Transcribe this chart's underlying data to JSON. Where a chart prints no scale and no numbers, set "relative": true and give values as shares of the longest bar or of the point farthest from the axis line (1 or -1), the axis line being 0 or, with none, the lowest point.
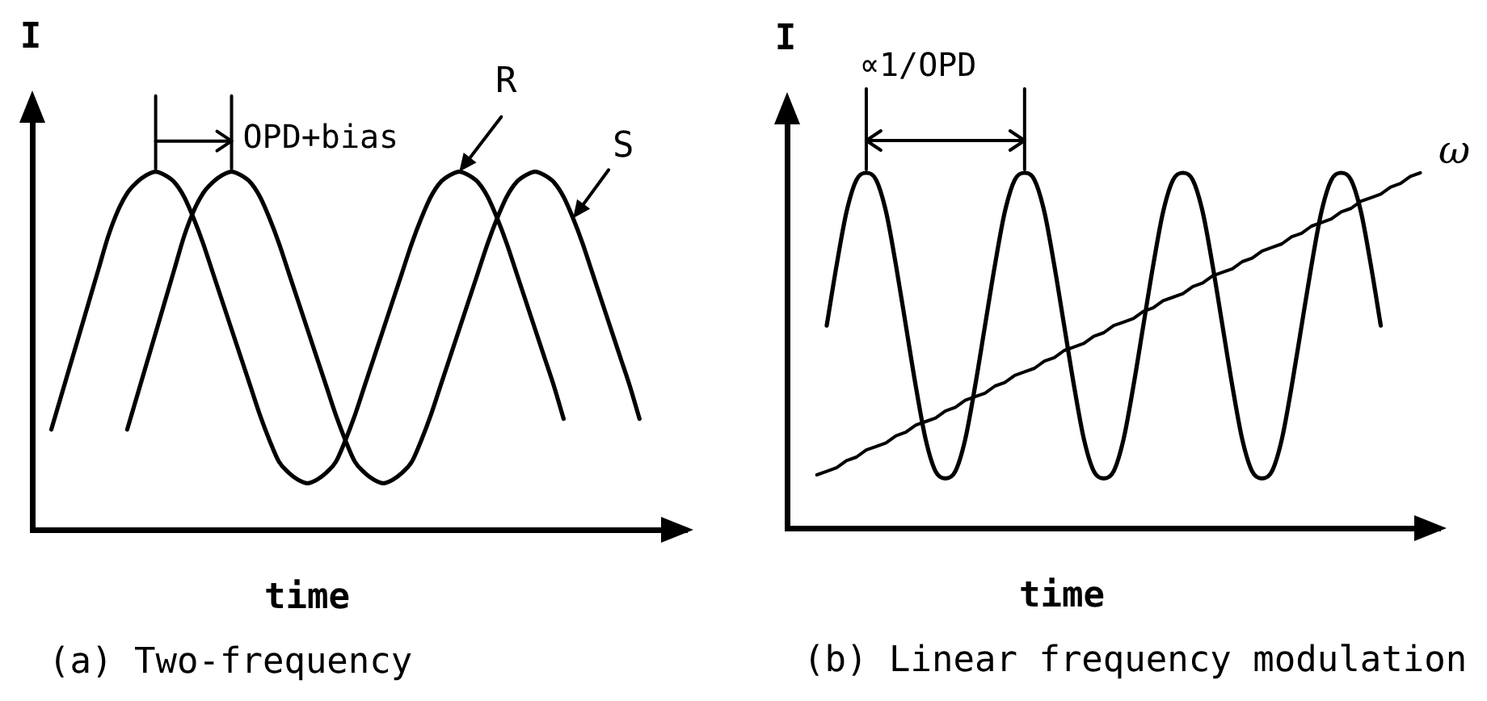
{
  "chart_data": [
    {
      "type": "line",
      "title": "(a) Two-frequency",
      "xlabel": "time",
      "ylabel": "I",
      "relative": true,
      "tick_labels": false,
      "annotations": [
        "OPD+bias"
      ],
      "categories": [
        null,
        null,
        null,
        null,
        null,
        null,
        null,
        null,
        null,
        null,
        null,
        null,
        null,
        null,
        null,
        null,
        null,
        null,
        null,
        null,
        null,
        null,
        null,
        null,
        null,
        null,
        null,
        null,
        null,
        null,
        null,
        null,
        null,
        null,
        null,
        null,
        null,
        null,
        null,
        null,
        null,
        null,
        null,
        null,
        null,
        null,
        null,
        null,
        null,
        null,
        null,
        null,
        null,
        null,
        null,
        null,
        null,
        null,
        null,
        null,
        null,
        null,
        null,
        null,
        null,
        null,
        null,
        null,
        null,
        null
      ],
      "series": [
        {
          "name": "R",
          "color": "#000000",
          "values": [
            null,
            null,
            0.28,
            0.37,
            0.46,
            0.55,
            0.64,
            0.73,
            0.82,
            0.89,
            0.94,
            0.97,
            0.99,
            1,
            0.99,
            0.97,
            0.93,
            0.87,
            0.8,
            0.72,
            0.64,
            0.56,
            0.48,
            0.4,
            0.32,
            0.25,
            0.19,
            0.16,
            0.14,
            0.13,
            0.14,
            0.16,
            0.19,
            0.25,
            0.32,
            0.4,
            0.48,
            0.56,
            0.64,
            0.72,
            0.8,
            0.87,
            0.93,
            0.97,
            0.99,
            1,
            0.99,
            0.97,
            0.93,
            0.87,
            0.8,
            0.72,
            0.64,
            0.56,
            0.48,
            0.4,
            0.31,
            null,
            null,
            null,
            null,
            null,
            null,
            null,
            null,
            null,
            null,
            null,
            null,
            null
          ]
        },
        {
          "name": "S",
          "color": "#000000",
          "values": [
            null,
            null,
            null,
            null,
            null,
            null,
            null,
            null,
            null,
            null,
            0.28,
            0.37,
            0.46,
            0.55,
            0.64,
            0.73,
            0.82,
            0.89,
            0.94,
            0.97,
            0.99,
            1,
            0.99,
            0.97,
            0.93,
            0.87,
            0.8,
            0.72,
            0.64,
            0.56,
            0.48,
            0.4,
            0.32,
            0.25,
            0.19,
            0.16,
            0.14,
            0.13,
            0.14,
            0.16,
            0.19,
            0.25,
            0.32,
            0.4,
            0.48,
            0.56,
            0.64,
            0.72,
            0.8,
            0.87,
            0.93,
            0.97,
            0.99,
            1,
            0.99,
            0.97,
            0.93,
            0.87,
            0.8,
            0.72,
            0.64,
            0.56,
            0.48,
            0.4,
            0.31,
            null,
            null,
            null,
            null,
            null
          ]
        }
      ]
    },
    {
      "type": "line",
      "title": "(b) Linear frequency modulation",
      "xlabel": "time",
      "ylabel": "I",
      "relative": true,
      "tick_labels": false,
      "annotations": [
        "∝1/OPD"
      ],
      "categories": [
        null,
        null,
        null,
        null,
        null,
        null,
        null,
        null,
        null,
        null,
        null,
        null,
        null,
        null,
        null,
        null,
        null,
        null,
        null,
        null,
        null,
        null,
        null,
        null,
        null,
        null,
        null,
        null,
        null,
        null,
        null,
        null,
        null,
        null,
        null,
        null,
        null,
        null,
        null,
        null,
        null,
        null,
        null,
        null,
        null,
        null,
        null,
        null,
        null,
        null,
        null,
        null,
        null,
        null,
        null,
        null,
        null,
        null,
        null,
        null,
        null,
        null,
        null,
        null,
        null,
        null,
        null
      ],
      "series": [
        {
          "color": "#000000",
          "values": [
            null,
            null,
            null,
            null,
            0.57,
            0.74,
            0.89,
            0.98,
            1,
            0.98,
            0.89,
            0.74,
            0.57,
            0.4,
            0.25,
            0.16,
            0.14,
            0.16,
            0.25,
            0.4,
            0.57,
            0.74,
            0.89,
            0.98,
            1,
            0.98,
            0.89,
            0.74,
            0.57,
            0.4,
            0.25,
            0.16,
            0.14,
            0.16,
            0.25,
            0.4,
            0.57,
            0.74,
            0.89,
            0.98,
            1,
            0.98,
            0.89,
            0.74,
            0.57,
            0.4,
            0.25,
            0.16,
            0.14,
            0.16,
            0.25,
            0.4,
            0.57,
            0.74,
            0.89,
            0.98,
            1,
            0.98,
            0.89,
            0.74,
            0.57,
            null,
            null,
            null,
            null,
            null,
            null
          ]
        },
        {
          "name": "ω",
          "color": "#000000",
          "values": [
            null,
            null,
            null,
            0.15,
            0.16,
            0.17,
            0.19,
            0.2,
            0.22,
            0.23,
            0.24,
            0.26,
            0.27,
            0.29,
            0.3,
            0.31,
            0.33,
            0.34,
            0.36,
            0.37,
            0.38,
            0.4,
            0.41,
            0.43,
            0.44,
            0.45,
            0.47,
            0.48,
            0.5,
            0.51,
            0.52,
            0.54,
            0.55,
            0.57,
            0.58,
            0.59,
            0.61,
            0.62,
            0.64,
            0.65,
            0.66,
            0.68,
            0.69,
            0.71,
            0.72,
            0.73,
            0.75,
            0.76,
            0.78,
            0.79,
            0.8,
            0.82,
            0.83,
            0.85,
            0.86,
            0.87,
            0.89,
            0.9,
            0.92,
            0.93,
            0.94,
            0.96,
            0.97,
            0.99,
            1,
            null,
            null
          ]
        }
      ]
    }
  ]
}
